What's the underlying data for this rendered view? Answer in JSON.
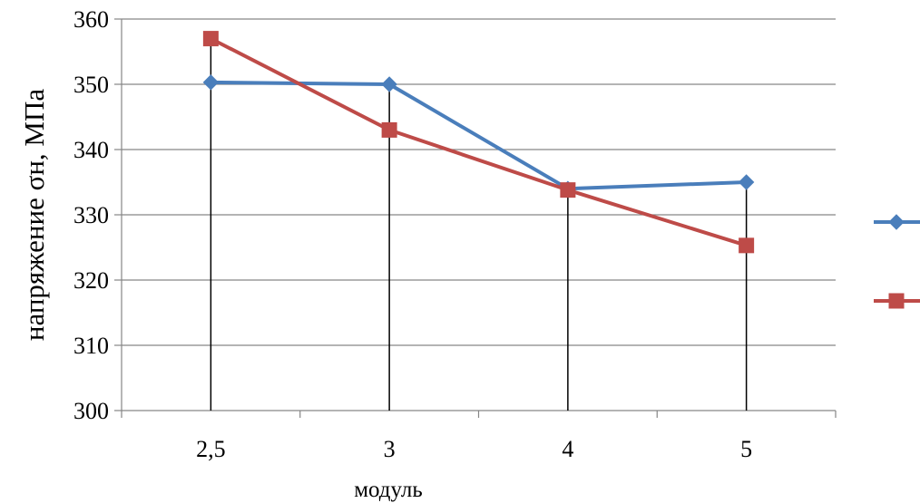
{
  "chart_data": {
    "type": "line",
    "categories": [
      "2,5",
      "3",
      "4",
      "5"
    ],
    "series": [
      {
        "values": [
          350.3,
          350.0,
          334.0,
          335.0
        ],
        "color": "#4a7ebb",
        "marker": "diamond"
      },
      {
        "values": [
          357.0,
          343.0,
          333.8,
          325.3
        ],
        "color": "#be4b48",
        "marker": "square"
      }
    ],
    "ylabel": "напряжение σн, МПа",
    "xlabel": "модуль",
    "ylim": [
      300,
      360
    ],
    "yticks": [
      "300",
      "310",
      "320",
      "330",
      "340",
      "350",
      "360"
    ],
    "grid": true,
    "drop_lines": true,
    "legend": "right"
  }
}
